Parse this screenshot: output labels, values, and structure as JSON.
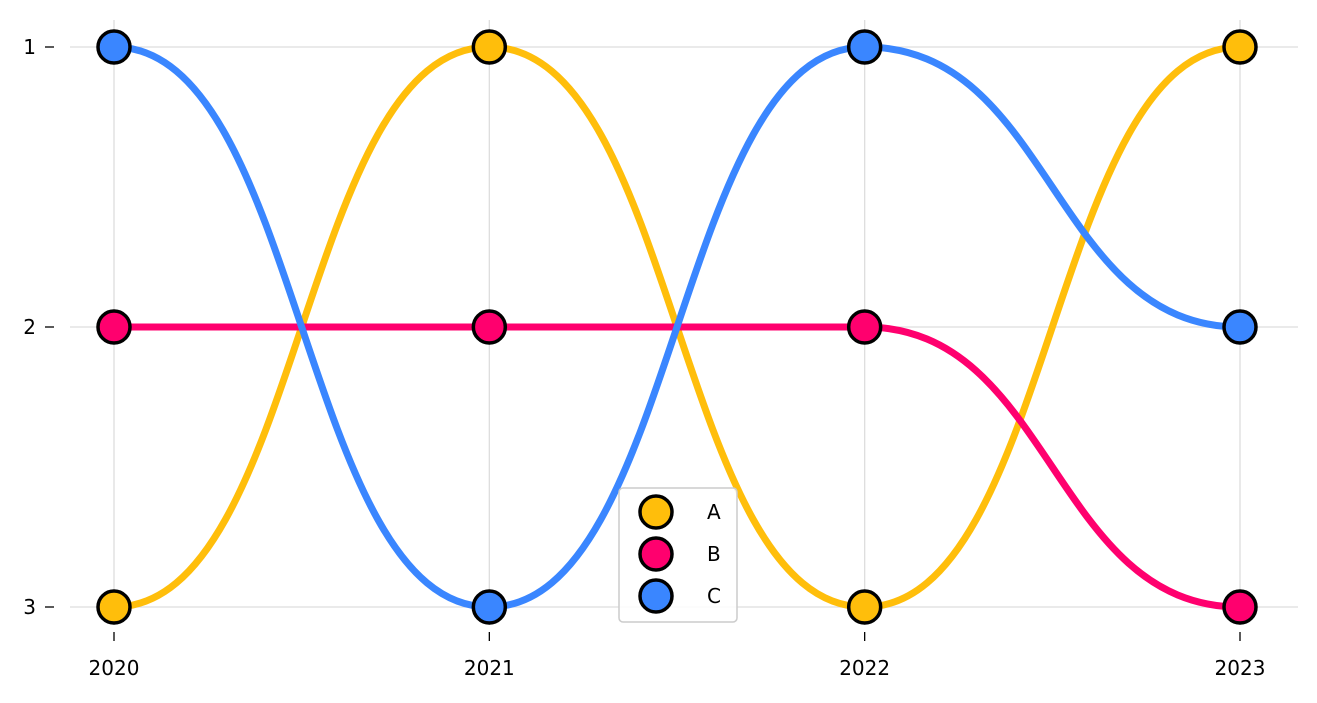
{
  "chart_data": {
    "type": "line",
    "title": "",
    "xlabel": "",
    "ylabel": "",
    "x": [
      2020,
      2021,
      2022,
      2023
    ],
    "x_tick_labels": [
      "2020",
      "2021",
      "2022",
      "2023"
    ],
    "y_tick_labels": [
      "1",
      "2",
      "3"
    ],
    "ylim": [
      3,
      1
    ],
    "y_inverted": true,
    "grid": true,
    "legend_position": "bottom-center",
    "series": [
      {
        "name": "A",
        "color": "#FFBE0B",
        "values": [
          3,
          1,
          3,
          1
        ]
      },
      {
        "name": "B",
        "color": "#FF006E",
        "values": [
          2,
          2,
          2,
          3
        ]
      },
      {
        "name": "C",
        "color": "#3A86FF",
        "values": [
          1,
          3,
          1,
          2
        ]
      }
    ]
  }
}
